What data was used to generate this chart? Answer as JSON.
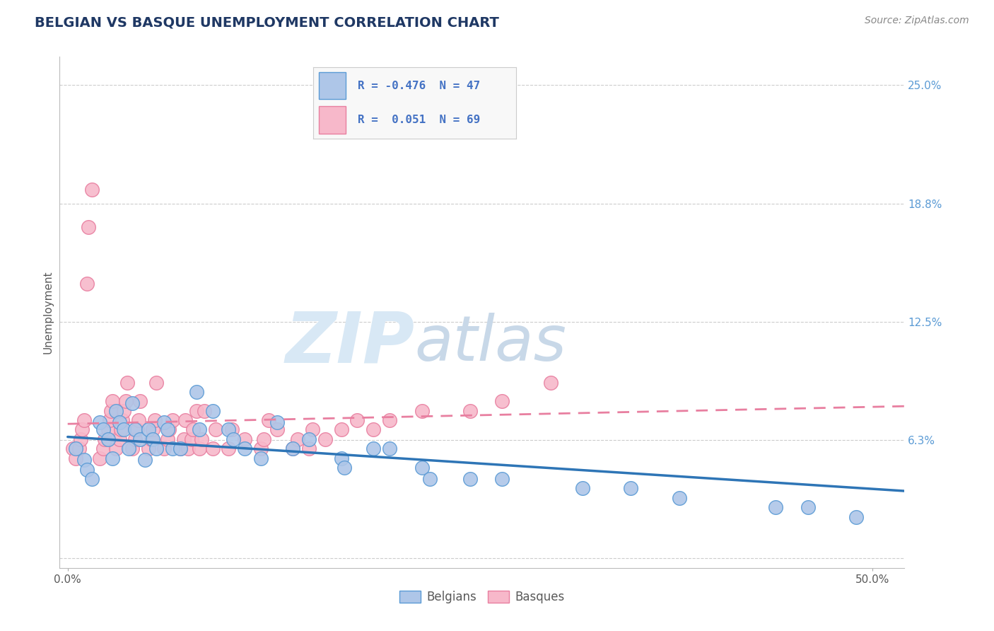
{
  "title": "BELGIAN VS BASQUE UNEMPLOYMENT CORRELATION CHART",
  "source_text": "Source: ZipAtlas.com",
  "ylabel_label": "Unemployment",
  "x_tick_positions": [
    0.0,
    0.5
  ],
  "x_tick_labels": [
    "0.0%",
    "50.0%"
  ],
  "y_tick_vals": [
    0.0,
    0.0625,
    0.125,
    0.1875,
    0.25
  ],
  "y_tick_labels": [
    "",
    "6.3%",
    "12.5%",
    "18.8%",
    "25.0%"
  ],
  "xlim": [
    -0.005,
    0.52
  ],
  "ylim": [
    -0.005,
    0.265
  ],
  "belgian_fill_color": "#aec6e8",
  "basque_fill_color": "#f7b8ca",
  "belgian_edge_color": "#5b9bd5",
  "basque_edge_color": "#e87fa0",
  "belgian_line_color": "#2e75b6",
  "basque_line_color": "#e87fa0",
  "background_color": "#ffffff",
  "grid_color": "#cccccc",
  "tick_label_color": "#5b9bd5",
  "title_color": "#1f3864",
  "axis_label_color": "#595959",
  "source_color": "#888888",
  "R_belgian": -0.476,
  "N_belgian": 47,
  "R_basque": 0.051,
  "N_basque": 69,
  "legend_R_color": "#4472c4",
  "legend_box_bg": "#f8f8f8",
  "legend_box_border": "#cccccc",
  "watermark_zip_color": "#d8e8f5",
  "watermark_atlas_color": "#c8d8e8",
  "belgian_scatter_x": [
    0.005,
    0.01,
    0.012,
    0.015,
    0.02,
    0.022,
    0.025,
    0.028,
    0.03,
    0.032,
    0.035,
    0.038,
    0.04,
    0.042,
    0.045,
    0.048,
    0.05,
    0.053,
    0.055,
    0.06,
    0.062,
    0.065,
    0.07,
    0.08,
    0.082,
    0.09,
    0.1,
    0.103,
    0.11,
    0.12,
    0.13,
    0.14,
    0.15,
    0.17,
    0.172,
    0.19,
    0.2,
    0.22,
    0.225,
    0.25,
    0.27,
    0.32,
    0.35,
    0.38,
    0.44,
    0.46,
    0.49
  ],
  "belgian_scatter_y": [
    0.058,
    0.052,
    0.047,
    0.042,
    0.072,
    0.068,
    0.063,
    0.053,
    0.078,
    0.072,
    0.068,
    0.058,
    0.082,
    0.068,
    0.063,
    0.052,
    0.068,
    0.063,
    0.058,
    0.072,
    0.068,
    0.058,
    0.058,
    0.088,
    0.068,
    0.078,
    0.068,
    0.063,
    0.058,
    0.053,
    0.072,
    0.058,
    0.063,
    0.053,
    0.048,
    0.058,
    0.058,
    0.048,
    0.042,
    0.042,
    0.042,
    0.037,
    0.037,
    0.032,
    0.027,
    0.027,
    0.022
  ],
  "basque_scatter_x": [
    0.003,
    0.005,
    0.007,
    0.008,
    0.009,
    0.01,
    0.012,
    0.013,
    0.015,
    0.02,
    0.022,
    0.023,
    0.025,
    0.026,
    0.027,
    0.028,
    0.03,
    0.032,
    0.033,
    0.034,
    0.035,
    0.036,
    0.037,
    0.04,
    0.042,
    0.043,
    0.044,
    0.045,
    0.05,
    0.052,
    0.053,
    0.054,
    0.055,
    0.06,
    0.062,
    0.063,
    0.065,
    0.07,
    0.072,
    0.073,
    0.075,
    0.077,
    0.078,
    0.08,
    0.082,
    0.083,
    0.085,
    0.09,
    0.092,
    0.1,
    0.102,
    0.11,
    0.12,
    0.122,
    0.125,
    0.13,
    0.14,
    0.143,
    0.15,
    0.152,
    0.16,
    0.17,
    0.18,
    0.19,
    0.2,
    0.22,
    0.25,
    0.27,
    0.3
  ],
  "basque_scatter_y": [
    0.058,
    0.053,
    0.058,
    0.063,
    0.068,
    0.073,
    0.145,
    0.175,
    0.195,
    0.053,
    0.058,
    0.063,
    0.068,
    0.073,
    0.078,
    0.083,
    0.058,
    0.063,
    0.068,
    0.073,
    0.078,
    0.083,
    0.093,
    0.058,
    0.063,
    0.068,
    0.073,
    0.083,
    0.058,
    0.063,
    0.068,
    0.073,
    0.093,
    0.058,
    0.063,
    0.068,
    0.073,
    0.058,
    0.063,
    0.073,
    0.058,
    0.063,
    0.068,
    0.078,
    0.058,
    0.063,
    0.078,
    0.058,
    0.068,
    0.058,
    0.068,
    0.063,
    0.058,
    0.063,
    0.073,
    0.068,
    0.058,
    0.063,
    0.058,
    0.068,
    0.063,
    0.068,
    0.073,
    0.068,
    0.073,
    0.078,
    0.078,
    0.083,
    0.093
  ]
}
